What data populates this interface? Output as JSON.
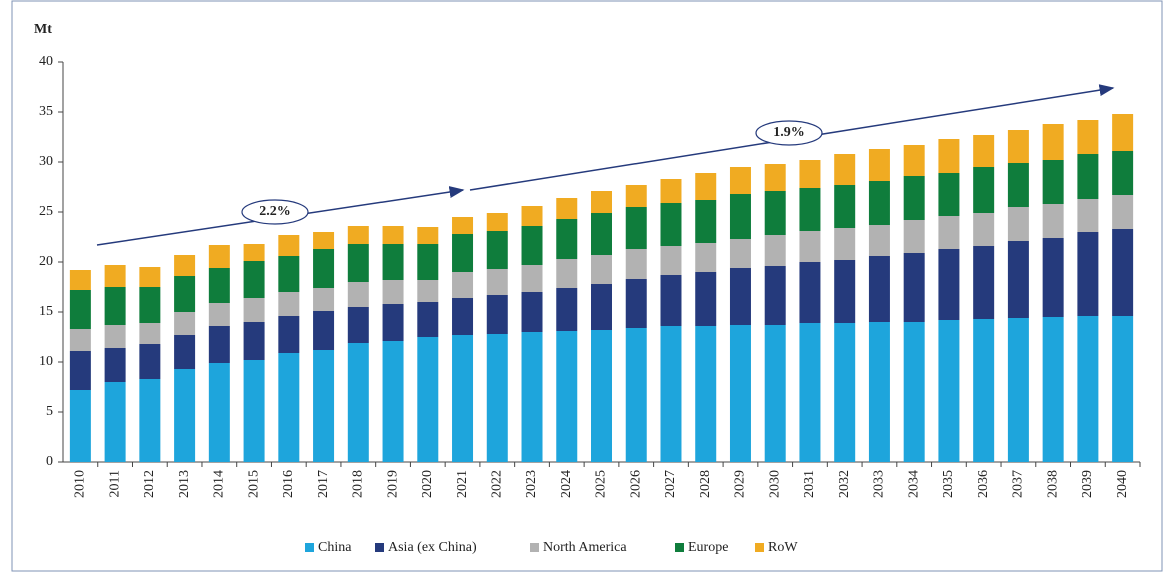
{
  "chart_data": {
    "type": "stacked_bar",
    "y_unit": "Mt",
    "annotations": [
      "2.2%",
      "1.9%"
    ],
    "categories": [
      "2010",
      "2011",
      "2012",
      "2013",
      "2014",
      "2015",
      "2016",
      "2017",
      "2018",
      "2019",
      "2020",
      "2021",
      "2022",
      "2023",
      "2024",
      "2025",
      "2026",
      "2027",
      "2028",
      "2029",
      "2030",
      "2031",
      "2032",
      "2033",
      "2034",
      "2035",
      "2036",
      "2037",
      "2038",
      "2039",
      "2040"
    ],
    "series": [
      {
        "name": "China",
        "color": "#1ea5dc",
        "values": [
          7.2,
          8.0,
          8.3,
          9.3,
          9.9,
          10.2,
          10.9,
          11.2,
          11.9,
          12.1,
          12.5,
          12.7,
          12.8,
          13.0,
          13.1,
          13.2,
          13.4,
          13.6,
          13.6,
          13.7,
          13.7,
          13.9,
          13.9,
          14.0,
          14.0,
          14.2,
          14.3,
          14.4,
          14.5,
          14.6,
          14.6
        ]
      },
      {
        "name": "Asia (ex China)",
        "color": "#253a7c",
        "values": [
          3.9,
          3.4,
          3.5,
          3.4,
          3.7,
          3.8,
          3.7,
          3.9,
          3.6,
          3.7,
          3.5,
          3.7,
          3.9,
          4.0,
          4.3,
          4.6,
          4.9,
          5.1,
          5.4,
          5.7,
          5.9,
          6.1,
          6.3,
          6.6,
          6.9,
          7.1,
          7.3,
          7.7,
          7.9,
          8.4,
          8.7
        ]
      },
      {
        "name": "North America",
        "color": "#b2b2b2",
        "values": [
          2.2,
          2.3,
          2.1,
          2.3,
          2.3,
          2.4,
          2.4,
          2.3,
          2.5,
          2.4,
          2.2,
          2.6,
          2.6,
          2.7,
          2.9,
          2.9,
          3.0,
          2.9,
          2.9,
          2.9,
          3.1,
          3.1,
          3.2,
          3.1,
          3.3,
          3.3,
          3.3,
          3.4,
          3.4,
          3.3,
          3.4
        ]
      },
      {
        "name": "Europe",
        "color": "#0f7d3c",
        "values": [
          3.9,
          3.8,
          3.6,
          3.6,
          3.5,
          3.7,
          3.6,
          3.9,
          3.8,
          3.6,
          3.6,
          3.8,
          3.8,
          3.9,
          4.0,
          4.2,
          4.2,
          4.3,
          4.3,
          4.5,
          4.4,
          4.3,
          4.3,
          4.4,
          4.4,
          4.3,
          4.6,
          4.4,
          4.4,
          4.5,
          4.4
        ]
      },
      {
        "name": "RoW",
        "color": "#f0ab22",
        "values": [
          2.0,
          2.2,
          2.0,
          2.1,
          2.3,
          1.7,
          2.1,
          1.7,
          1.8,
          1.8,
          1.7,
          1.7,
          1.8,
          2.0,
          2.1,
          2.2,
          2.2,
          2.4,
          2.7,
          2.7,
          2.7,
          2.8,
          3.1,
          3.2,
          3.1,
          3.4,
          3.2,
          3.3,
          3.6,
          3.4,
          3.7
        ]
      }
    ],
    "ylim": [
      0,
      40
    ],
    "yticks": [
      0,
      5,
      10,
      15,
      20,
      25,
      30,
      35,
      40
    ]
  }
}
